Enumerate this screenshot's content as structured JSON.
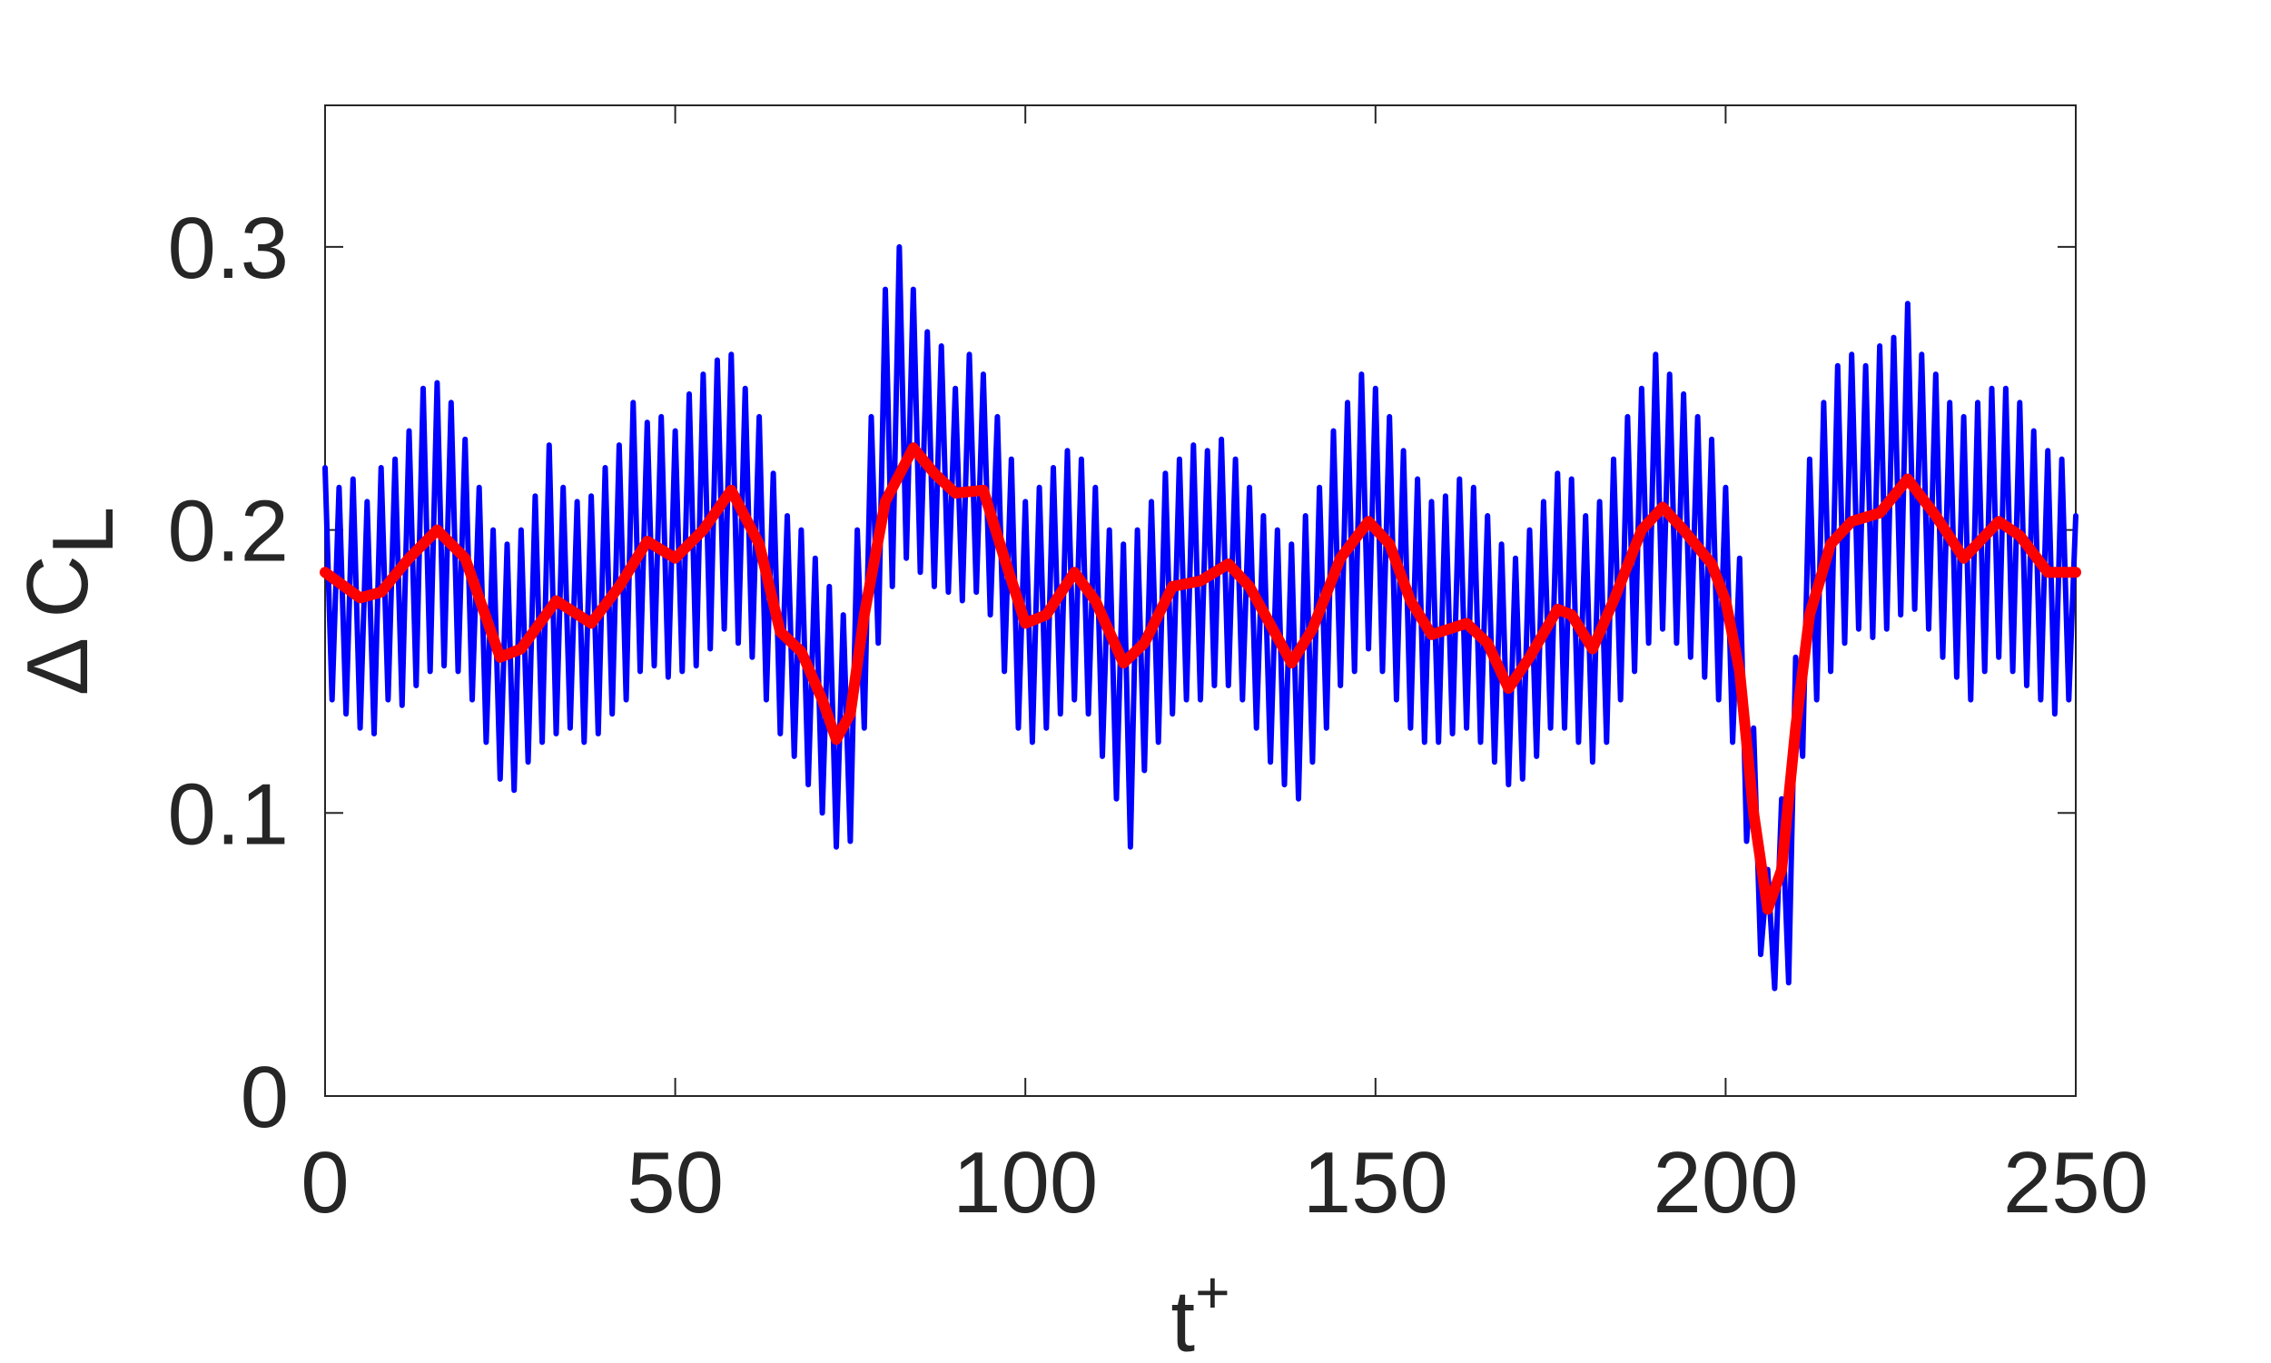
{
  "chart_data": {
    "type": "line",
    "xlabel": {
      "text": "t",
      "superscript": "+"
    },
    "ylabel": {
      "text": "Δ C",
      "subscript": "L"
    },
    "xlim": [
      0,
      250
    ],
    "xticks": [
      0,
      50,
      100,
      150,
      200,
      250
    ],
    "ylim": [
      0,
      0.35
    ],
    "yticks": [
      0,
      0.1,
      0.2,
      0.3
    ],
    "box": true,
    "series": [
      {
        "color": "#0000ff",
        "width": 6,
        "x": [
          0,
          1,
          2,
          3,
          4,
          5,
          6,
          7,
          8,
          9,
          10,
          11,
          12,
          13,
          14,
          15,
          16,
          17,
          18,
          19,
          20,
          21,
          22,
          23,
          24,
          25,
          26,
          27,
          28,
          29,
          30,
          31,
          32,
          33,
          34,
          35,
          36,
          37,
          38,
          39,
          40,
          41,
          42,
          43,
          44,
          45,
          46,
          47,
          48,
          49,
          50,
          51,
          52,
          53,
          54,
          55,
          56,
          57,
          58,
          59,
          60,
          61,
          62,
          63,
          64,
          65,
          66,
          67,
          68,
          69,
          70,
          71,
          72,
          73,
          74,
          75,
          76,
          77,
          78,
          79,
          80,
          81,
          82,
          83,
          84,
          85,
          86,
          87,
          88,
          89,
          90,
          91,
          92,
          93,
          94,
          95,
          96,
          97,
          98,
          99,
          100,
          101,
          102,
          103,
          104,
          105,
          106,
          107,
          108,
          109,
          110,
          111,
          112,
          113,
          114,
          115,
          116,
          117,
          118,
          119,
          120,
          121,
          122,
          123,
          124,
          125,
          126,
          127,
          128,
          129,
          130,
          131,
          132,
          133,
          134,
          135,
          136,
          137,
          138,
          139,
          140,
          141,
          142,
          143,
          144,
          145,
          146,
          147,
          148,
          149,
          150,
          151,
          152,
          153,
          154,
          155,
          156,
          157,
          158,
          159,
          160,
          161,
          162,
          163,
          164,
          165,
          166,
          167,
          168,
          169,
          170,
          171,
          172,
          173,
          174,
          175,
          176,
          177,
          178,
          179,
          180,
          181,
          182,
          183,
          184,
          185,
          186,
          187,
          188,
          189,
          190,
          191,
          192,
          193,
          194,
          195,
          196,
          197,
          198,
          199,
          200,
          201,
          202,
          203,
          204,
          205,
          206,
          207,
          208,
          209,
          210,
          211,
          212,
          213,
          214,
          215,
          216,
          217,
          218,
          219,
          220,
          221,
          222,
          223,
          224,
          225,
          226,
          227,
          228,
          229,
          230,
          231,
          232,
          233,
          234,
          235,
          236,
          237,
          238,
          239,
          240,
          241,
          242,
          243,
          244,
          245,
          246,
          247,
          248,
          249,
          250
        ],
        "values": [
          0.222,
          0.14,
          0.215,
          0.135,
          0.218,
          0.13,
          0.21,
          0.128,
          0.222,
          0.14,
          0.225,
          0.138,
          0.235,
          0.145,
          0.25,
          0.15,
          0.252,
          0.152,
          0.245,
          0.15,
          0.232,
          0.14,
          0.215,
          0.125,
          0.2,
          0.112,
          0.195,
          0.108,
          0.2,
          0.118,
          0.212,
          0.125,
          0.23,
          0.128,
          0.215,
          0.13,
          0.21,
          0.125,
          0.212,
          0.128,
          0.222,
          0.135,
          0.23,
          0.14,
          0.245,
          0.15,
          0.238,
          0.152,
          0.24,
          0.148,
          0.235,
          0.15,
          0.248,
          0.152,
          0.255,
          0.158,
          0.26,
          0.165,
          0.262,
          0.16,
          0.25,
          0.155,
          0.24,
          0.14,
          0.22,
          0.128,
          0.205,
          0.12,
          0.2,
          0.11,
          0.19,
          0.1,
          0.18,
          0.088,
          0.17,
          0.09,
          0.2,
          0.13,
          0.24,
          0.16,
          0.285,
          0.18,
          0.3,
          0.19,
          0.285,
          0.185,
          0.27,
          0.18,
          0.265,
          0.178,
          0.25,
          0.175,
          0.262,
          0.178,
          0.255,
          0.17,
          0.24,
          0.15,
          0.225,
          0.13,
          0.21,
          0.125,
          0.215,
          0.13,
          0.222,
          0.135,
          0.228,
          0.14,
          0.225,
          0.135,
          0.215,
          0.12,
          0.2,
          0.105,
          0.195,
          0.088,
          0.2,
          0.115,
          0.21,
          0.125,
          0.22,
          0.135,
          0.225,
          0.14,
          0.23,
          0.14,
          0.228,
          0.145,
          0.232,
          0.145,
          0.225,
          0.14,
          0.215,
          0.13,
          0.205,
          0.118,
          0.2,
          0.11,
          0.195,
          0.105,
          0.205,
          0.118,
          0.215,
          0.13,
          0.235,
          0.145,
          0.245,
          0.15,
          0.255,
          0.158,
          0.25,
          0.15,
          0.24,
          0.14,
          0.228,
          0.13,
          0.218,
          0.125,
          0.21,
          0.125,
          0.212,
          0.128,
          0.218,
          0.13,
          0.215,
          0.125,
          0.205,
          0.118,
          0.195,
          0.11,
          0.19,
          0.112,
          0.2,
          0.12,
          0.21,
          0.13,
          0.22,
          0.13,
          0.218,
          0.125,
          0.205,
          0.118,
          0.21,
          0.125,
          0.225,
          0.14,
          0.24,
          0.15,
          0.25,
          0.16,
          0.262,
          0.165,
          0.255,
          0.16,
          0.248,
          0.155,
          0.24,
          0.148,
          0.232,
          0.14,
          0.215,
          0.125,
          0.19,
          0.09,
          0.13,
          0.05,
          0.08,
          0.038,
          0.105,
          0.04,
          0.155,
          0.12,
          0.225,
          0.14,
          0.245,
          0.15,
          0.258,
          0.16,
          0.262,
          0.165,
          0.258,
          0.162,
          0.265,
          0.165,
          0.268,
          0.17,
          0.28,
          0.172,
          0.262,
          0.165,
          0.255,
          0.155,
          0.245,
          0.148,
          0.24,
          0.14,
          0.245,
          0.15,
          0.25,
          0.155,
          0.25,
          0.15,
          0.245,
          0.145,
          0.235,
          0.14,
          0.228,
          0.135,
          0.225,
          0.14,
          0.205
        ]
      },
      {
        "color": "#ff0000",
        "width": 12,
        "x": [
          0,
          5,
          8,
          12,
          16,
          20,
          25,
          28,
          33,
          38,
          42,
          46,
          50,
          54,
          58,
          62,
          65,
          68,
          71,
          73,
          75,
          77,
          80,
          84,
          87,
          90,
          94,
          97,
          100,
          103,
          107,
          110,
          114,
          117,
          121,
          125,
          129,
          132,
          138,
          141,
          145,
          149,
          152,
          155,
          158,
          163,
          166,
          169,
          172,
          176,
          178,
          181,
          184,
          188,
          191,
          194,
          198,
          200,
          202,
          204,
          206,
          208,
          210,
          212,
          215,
          218,
          222,
          226,
          230,
          234,
          239,
          242,
          246,
          250
        ],
        "values": [
          0.185,
          0.176,
          0.178,
          0.19,
          0.2,
          0.19,
          0.155,
          0.158,
          0.175,
          0.167,
          0.18,
          0.196,
          0.19,
          0.2,
          0.214,
          0.195,
          0.164,
          0.157,
          0.14,
          0.126,
          0.135,
          0.17,
          0.21,
          0.229,
          0.22,
          0.213,
          0.214,
          0.19,
          0.167,
          0.17,
          0.185,
          0.175,
          0.153,
          0.16,
          0.18,
          0.182,
          0.188,
          0.18,
          0.153,
          0.165,
          0.19,
          0.203,
          0.195,
          0.175,
          0.163,
          0.167,
          0.16,
          0.144,
          0.155,
          0.172,
          0.17,
          0.158,
          0.175,
          0.2,
          0.208,
          0.2,
          0.188,
          0.175,
          0.15,
          0.1,
          0.066,
          0.08,
          0.13,
          0.17,
          0.195,
          0.203,
          0.206,
          0.218,
          0.205,
          0.19,
          0.203,
          0.198,
          0.185,
          0.185
        ]
      }
    ]
  }
}
